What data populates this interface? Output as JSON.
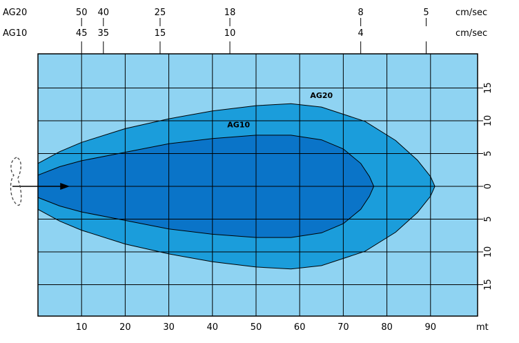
{
  "chart_data": {
    "type": "area",
    "title": "",
    "xlabel": "mt",
    "ylabel": "",
    "xlim": [
      0,
      100
    ],
    "ylim": [
      -20,
      20
    ],
    "grid": true,
    "x_ticks": [
      10,
      20,
      30,
      40,
      50,
      60,
      70,
      80,
      90
    ],
    "x_tick_labels": [
      "10",
      "20",
      "30",
      "40",
      "50",
      "60",
      "70",
      "80",
      "90"
    ],
    "y_ticks": [
      15,
      10,
      5,
      0,
      -5,
      -10,
      -15
    ],
    "y_tick_labels": [
      "15",
      "10",
      "5",
      "0",
      "5",
      "10",
      "15"
    ],
    "top_axis": {
      "rows": [
        {
          "name": "AG20",
          "unit": "cm/sec",
          "ticks": [
            {
              "x": 10,
              "label": "50"
            },
            {
              "x": 15,
              "label": "40"
            },
            {
              "x": 28,
              "label": "25"
            },
            {
              "x": 44,
              "label": "18"
            },
            {
              "x": 74,
              "label": "8"
            },
            {
              "x": 89,
              "label": "5"
            }
          ]
        },
        {
          "name": "AG10",
          "unit": "cm/sec",
          "ticks": [
            {
              "x": 10,
              "label": "45"
            },
            {
              "x": 15,
              "label": "35"
            },
            {
              "x": 28,
              "label": "15"
            },
            {
              "x": 44,
              "label": "10"
            },
            {
              "x": 74,
              "label": "4"
            }
          ]
        }
      ],
      "tick_marks": [
        10,
        15,
        28,
        44,
        74,
        89
      ]
    },
    "series": [
      {
        "name": "AG20",
        "color": "#1b9ddb",
        "label_at": [
          65,
          13.5
        ],
        "upper": [
          [
            0,
            3.5
          ],
          [
            5,
            5.3
          ],
          [
            10,
            6.7
          ],
          [
            20,
            8.8
          ],
          [
            30,
            10.3
          ],
          [
            40,
            11.5
          ],
          [
            50,
            12.3
          ],
          [
            58,
            12.6
          ],
          [
            65,
            12.1
          ],
          [
            75,
            9.9
          ],
          [
            82,
            7.0
          ],
          [
            87,
            4.0
          ],
          [
            90,
            1.5
          ],
          [
            91,
            0
          ]
        ],
        "lower": [
          [
            0,
            -3.5
          ],
          [
            5,
            -5.3
          ],
          [
            10,
            -6.7
          ],
          [
            20,
            -8.8
          ],
          [
            30,
            -10.3
          ],
          [
            40,
            -11.5
          ],
          [
            50,
            -12.3
          ],
          [
            58,
            -12.6
          ],
          [
            65,
            -12.1
          ],
          [
            75,
            -9.9
          ],
          [
            82,
            -7.0
          ],
          [
            87,
            -4.0
          ],
          [
            90,
            -1.5
          ],
          [
            91,
            0
          ]
        ]
      },
      {
        "name": "AG10",
        "color": "#0a74c8",
        "label_at": [
          46,
          9
        ],
        "upper": [
          [
            0,
            1.7
          ],
          [
            5,
            3.0
          ],
          [
            10,
            3.9
          ],
          [
            20,
            5.2
          ],
          [
            30,
            6.5
          ],
          [
            40,
            7.3
          ],
          [
            50,
            7.8
          ],
          [
            58,
            7.8
          ],
          [
            65,
            7.1
          ],
          [
            70,
            5.7
          ],
          [
            74,
            3.5
          ],
          [
            76,
            1.5
          ],
          [
            77,
            0
          ]
        ],
        "lower": [
          [
            0,
            -1.7
          ],
          [
            5,
            -3.0
          ],
          [
            10,
            -3.9
          ],
          [
            20,
            -5.2
          ],
          [
            30,
            -6.5
          ],
          [
            40,
            -7.3
          ],
          [
            50,
            -7.8
          ],
          [
            58,
            -7.8
          ],
          [
            65,
            -7.1
          ],
          [
            70,
            -5.7
          ],
          [
            74,
            -3.5
          ],
          [
            76,
            -1.5
          ],
          [
            77,
            0
          ]
        ]
      }
    ],
    "arrow": {
      "from": [
        -6,
        0
      ],
      "to": [
        7,
        0
      ]
    },
    "colors": {
      "background": "#8fd3f2",
      "grid": "#000000",
      "outline": "#000000"
    }
  }
}
